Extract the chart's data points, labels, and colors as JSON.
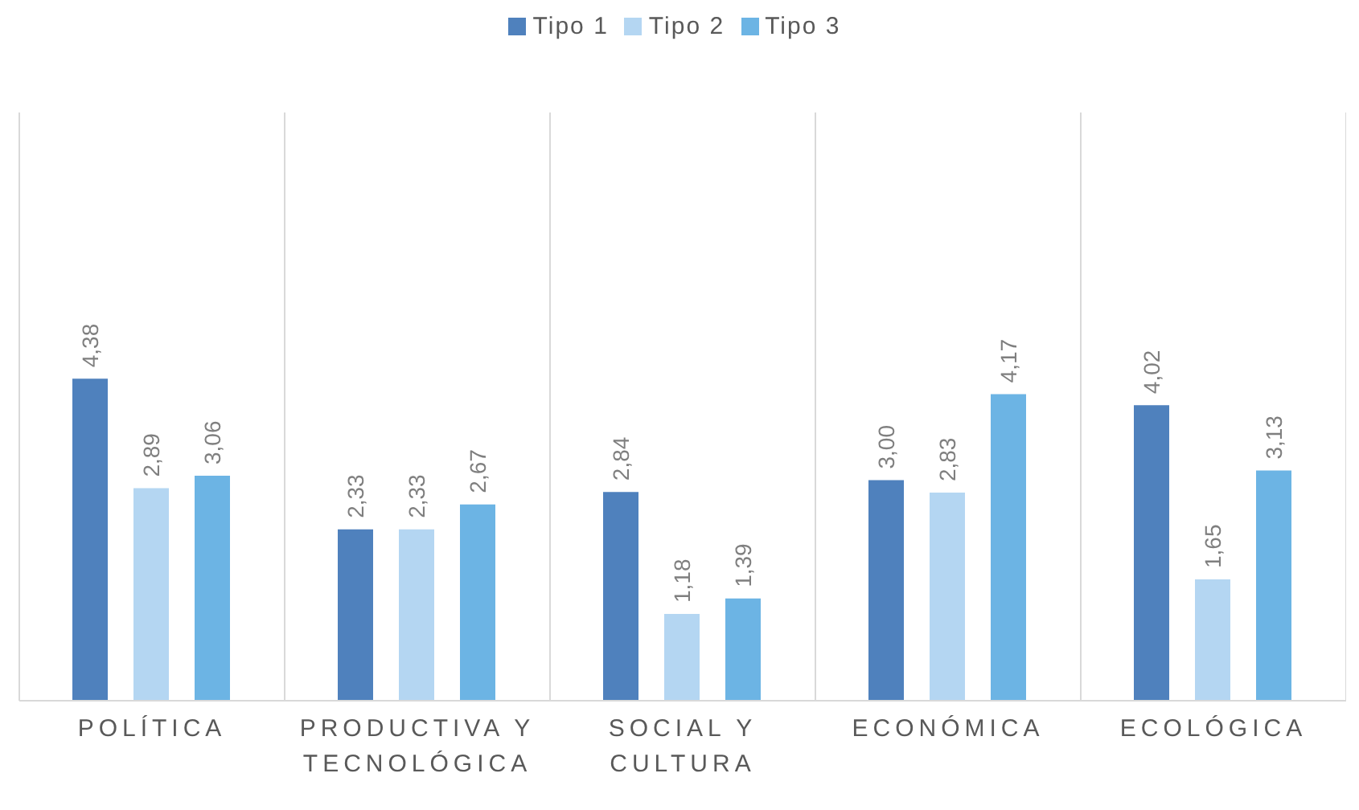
{
  "chart_data": {
    "type": "bar",
    "categories": [
      "POLÍTICA",
      "PRODUCTIVA Y TECNOLÓGICA",
      "SOCIAL Y CULTURA",
      "ECONÓMICA",
      "ECOLÓGICA"
    ],
    "series": [
      {
        "name": "Tipo 1",
        "color": "#4f81bd",
        "values": [
          4.38,
          2.33,
          2.84,
          3.0,
          4.02
        ],
        "value_labels": [
          "4,38",
          "2,33",
          "2,84",
          "3,00",
          "4,02"
        ]
      },
      {
        "name": "Tipo 2",
        "color": "#b4d6f2",
        "values": [
          2.89,
          2.33,
          1.18,
          2.83,
          1.65
        ],
        "value_labels": [
          "2,89",
          "2,33",
          "1,18",
          "2,83",
          "1,65"
        ]
      },
      {
        "name": "Tipo 3",
        "color": "#6cb4e4",
        "values": [
          3.06,
          2.67,
          1.39,
          4.17,
          3.13
        ],
        "value_labels": [
          "3,06",
          "2,67",
          "1,39",
          "4,17",
          "3,13"
        ]
      }
    ],
    "grid": "x",
    "legend": "top",
    "tick_labels": "x"
  }
}
